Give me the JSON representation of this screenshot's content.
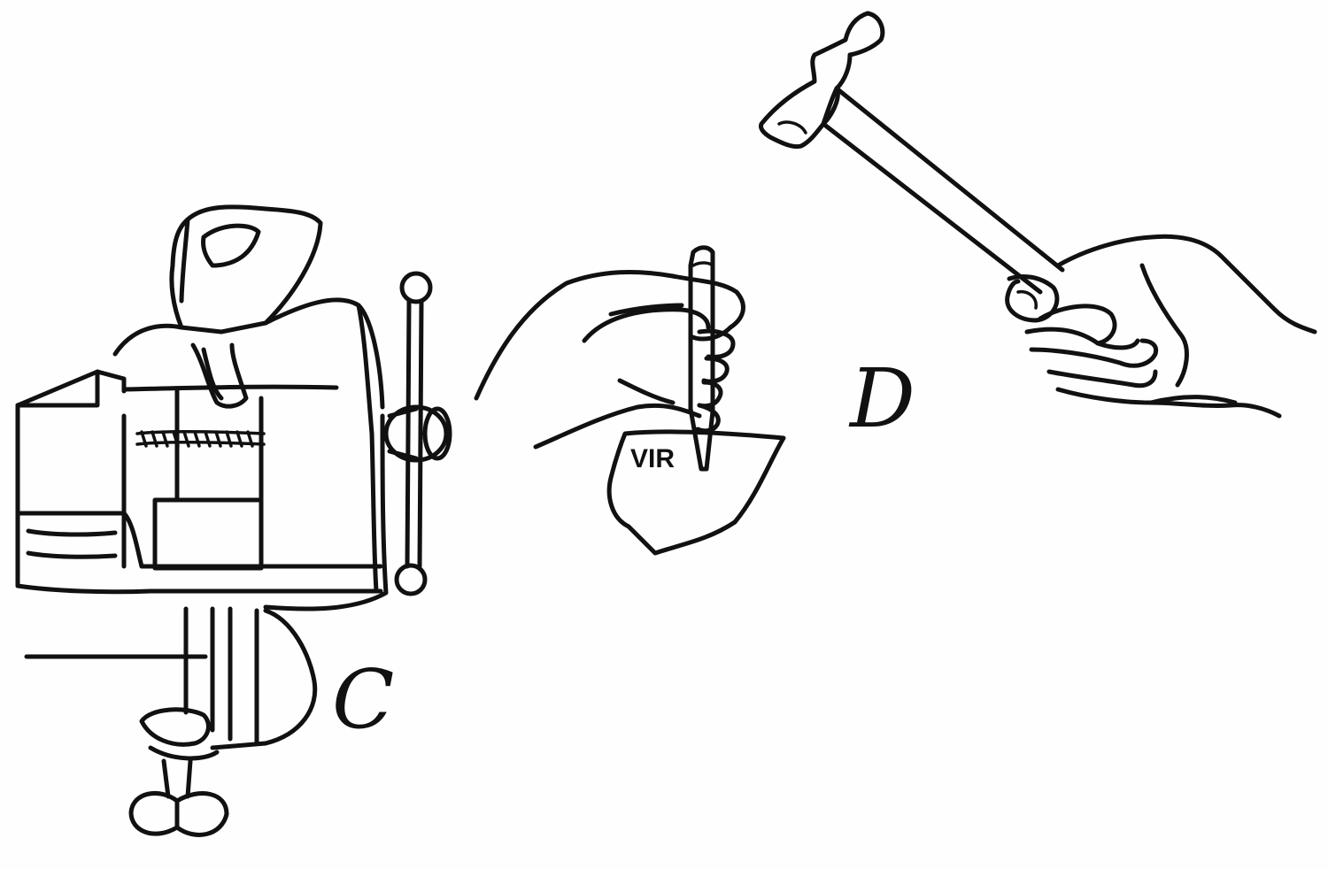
{
  "figure": {
    "labels": {
      "vise": "C",
      "punching": "D"
    },
    "stamp_text": "VIR",
    "ink_color": "#111111",
    "paper_color": "#fefefe",
    "parts": [
      "bench-vise",
      "hand-holding-punch",
      "metal-piece",
      "hand-holding-hammer",
      "hammer"
    ]
  }
}
